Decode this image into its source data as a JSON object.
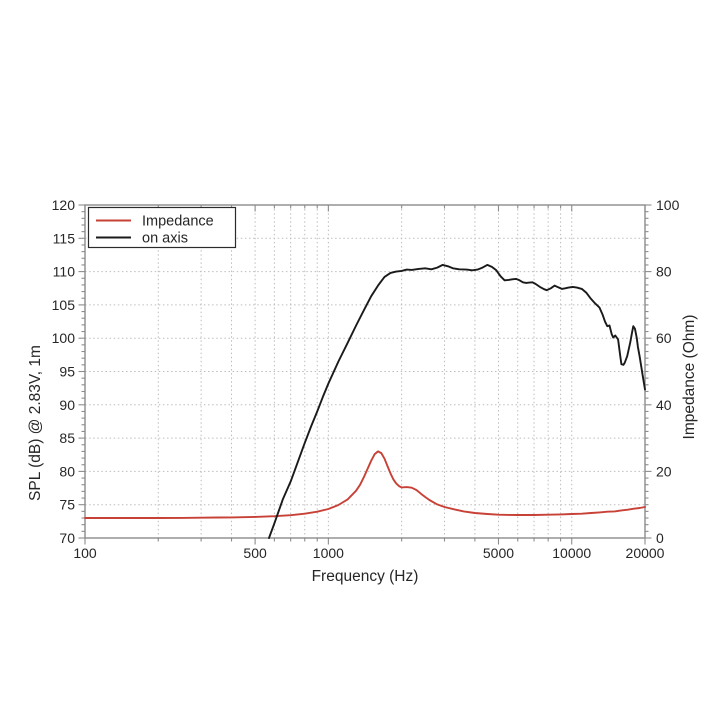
{
  "page": {
    "background": "#ffffff"
  },
  "chart_data": {
    "type": "line",
    "x_scale": "log",
    "xlabel": "Frequency (Hz)",
    "ylabel_left": "SPL (dB) @ 2.83V, 1m",
    "ylabel_right": "Impedance (Ohm)",
    "xlim": [
      100,
      20000
    ],
    "ylim_left": [
      70,
      120
    ],
    "ylim_right": [
      0,
      100
    ],
    "x_tick_values": [
      100,
      500,
      1000,
      5000,
      10000,
      20000
    ],
    "x_tick_labels": [
      "100",
      "500",
      "1000",
      "5000",
      "10000",
      "20000"
    ],
    "x_minor_ticks": [
      200,
      300,
      400,
      600,
      700,
      800,
      900,
      2000,
      3000,
      4000,
      6000,
      7000,
      8000,
      9000
    ],
    "y_left_ticks": [
      70,
      75,
      80,
      85,
      90,
      95,
      100,
      105,
      110,
      115,
      120
    ],
    "y_right_ticks": [
      0,
      20,
      40,
      60,
      80,
      100
    ],
    "grid": true,
    "legend_position": "upper-left",
    "colors": {
      "impedance": "#c84137",
      "on_axis": "#1a1a1a",
      "grid": "#bdbdbd",
      "spine": "#8c8c8c",
      "text": "#262626"
    },
    "series": [
      {
        "name": "Impedance",
        "axis": "right",
        "unit": "Ohm",
        "color_key": "impedance",
        "points": [
          [
            100,
            6.0
          ],
          [
            150,
            6.0
          ],
          [
            200,
            6.0
          ],
          [
            250,
            6.05
          ],
          [
            300,
            6.1
          ],
          [
            350,
            6.15
          ],
          [
            400,
            6.2
          ],
          [
            500,
            6.35
          ],
          [
            600,
            6.55
          ],
          [
            700,
            6.85
          ],
          [
            800,
            7.3
          ],
          [
            900,
            7.9
          ],
          [
            1000,
            8.7
          ],
          [
            1100,
            9.9
          ],
          [
            1200,
            11.6
          ],
          [
            1300,
            14.2
          ],
          [
            1350,
            16.0
          ],
          [
            1400,
            18.3
          ],
          [
            1450,
            20.8
          ],
          [
            1500,
            23.2
          ],
          [
            1550,
            25.2
          ],
          [
            1600,
            26.0
          ],
          [
            1650,
            25.5
          ],
          [
            1700,
            23.8
          ],
          [
            1750,
            21.6
          ],
          [
            1800,
            19.4
          ],
          [
            1850,
            17.6
          ],
          [
            1900,
            16.4
          ],
          [
            1950,
            15.6
          ],
          [
            2000,
            15.2
          ],
          [
            2100,
            15.3
          ],
          [
            2200,
            15.1
          ],
          [
            2300,
            14.4
          ],
          [
            2400,
            13.3
          ],
          [
            2500,
            12.3
          ],
          [
            2600,
            11.4
          ],
          [
            2800,
            10.1
          ],
          [
            3000,
            9.3
          ],
          [
            3300,
            8.6
          ],
          [
            3600,
            8.0
          ],
          [
            4000,
            7.5
          ],
          [
            4500,
            7.2
          ],
          [
            5000,
            7.0
          ],
          [
            5500,
            6.95
          ],
          [
            6000,
            6.9
          ],
          [
            7000,
            6.9
          ],
          [
            8000,
            7.0
          ],
          [
            9000,
            7.1
          ],
          [
            10000,
            7.2
          ],
          [
            11000,
            7.3
          ],
          [
            12000,
            7.5
          ],
          [
            13000,
            7.7
          ],
          [
            14000,
            7.9
          ],
          [
            15000,
            8.0
          ],
          [
            16000,
            8.3
          ],
          [
            17000,
            8.5
          ],
          [
            18000,
            8.8
          ],
          [
            19000,
            9.0
          ],
          [
            20000,
            9.3
          ]
        ]
      },
      {
        "name": "on axis",
        "axis": "left",
        "unit": "dB",
        "color_key": "on_axis",
        "points": [
          [
            570,
            70.0
          ],
          [
            600,
            72.2
          ],
          [
            650,
            75.8
          ],
          [
            700,
            78.5
          ],
          [
            750,
            81.5
          ],
          [
            800,
            84.3
          ],
          [
            850,
            86.8
          ],
          [
            900,
            89.0
          ],
          [
            950,
            91.2
          ],
          [
            1000,
            93.2
          ],
          [
            1100,
            96.5
          ],
          [
            1200,
            99.3
          ],
          [
            1300,
            101.9
          ],
          [
            1400,
            104.2
          ],
          [
            1500,
            106.3
          ],
          [
            1600,
            107.9
          ],
          [
            1700,
            109.2
          ],
          [
            1800,
            109.8
          ],
          [
            1900,
            110.0
          ],
          [
            2000,
            110.1
          ],
          [
            2100,
            110.3
          ],
          [
            2200,
            110.25
          ],
          [
            2350,
            110.4
          ],
          [
            2500,
            110.5
          ],
          [
            2650,
            110.35
          ],
          [
            2800,
            110.6
          ],
          [
            2950,
            111.0
          ],
          [
            3100,
            110.8
          ],
          [
            3250,
            110.5
          ],
          [
            3450,
            110.35
          ],
          [
            3700,
            110.3
          ],
          [
            3900,
            110.2
          ],
          [
            4100,
            110.3
          ],
          [
            4300,
            110.6
          ],
          [
            4500,
            111.0
          ],
          [
            4700,
            110.7
          ],
          [
            4900,
            110.2
          ],
          [
            5100,
            109.3
          ],
          [
            5300,
            108.7
          ],
          [
            5500,
            108.75
          ],
          [
            5700,
            108.85
          ],
          [
            5900,
            108.9
          ],
          [
            6100,
            108.7
          ],
          [
            6300,
            108.4
          ],
          [
            6500,
            108.3
          ],
          [
            6700,
            108.35
          ],
          [
            6900,
            108.4
          ],
          [
            7100,
            108.15
          ],
          [
            7400,
            107.7
          ],
          [
            7700,
            107.35
          ],
          [
            7900,
            107.2
          ],
          [
            8200,
            107.5
          ],
          [
            8500,
            107.9
          ],
          [
            8800,
            107.65
          ],
          [
            9100,
            107.4
          ],
          [
            9400,
            107.5
          ],
          [
            9700,
            107.6
          ],
          [
            10100,
            107.7
          ],
          [
            10500,
            107.6
          ],
          [
            11000,
            107.4
          ],
          [
            11500,
            106.8
          ],
          [
            12000,
            105.9
          ],
          [
            12500,
            105.2
          ],
          [
            13000,
            104.6
          ],
          [
            13400,
            103.5
          ],
          [
            13700,
            102.5
          ],
          [
            14000,
            101.8
          ],
          [
            14300,
            101.9
          ],
          [
            14600,
            100.6
          ],
          [
            14800,
            100.1
          ],
          [
            15100,
            100.4
          ],
          [
            15500,
            99.8
          ],
          [
            15800,
            97.5
          ],
          [
            16000,
            96.1
          ],
          [
            16300,
            96.0
          ],
          [
            16500,
            96.3
          ],
          [
            16900,
            97.3
          ],
          [
            17400,
            99.4
          ],
          [
            17700,
            100.9
          ],
          [
            17900,
            101.8
          ],
          [
            18200,
            101.4
          ],
          [
            18500,
            100.0
          ],
          [
            18700,
            98.7
          ],
          [
            19000,
            97.3
          ],
          [
            19300,
            95.8
          ],
          [
            19600,
            94.2
          ],
          [
            20000,
            92.3
          ]
        ]
      }
    ]
  }
}
